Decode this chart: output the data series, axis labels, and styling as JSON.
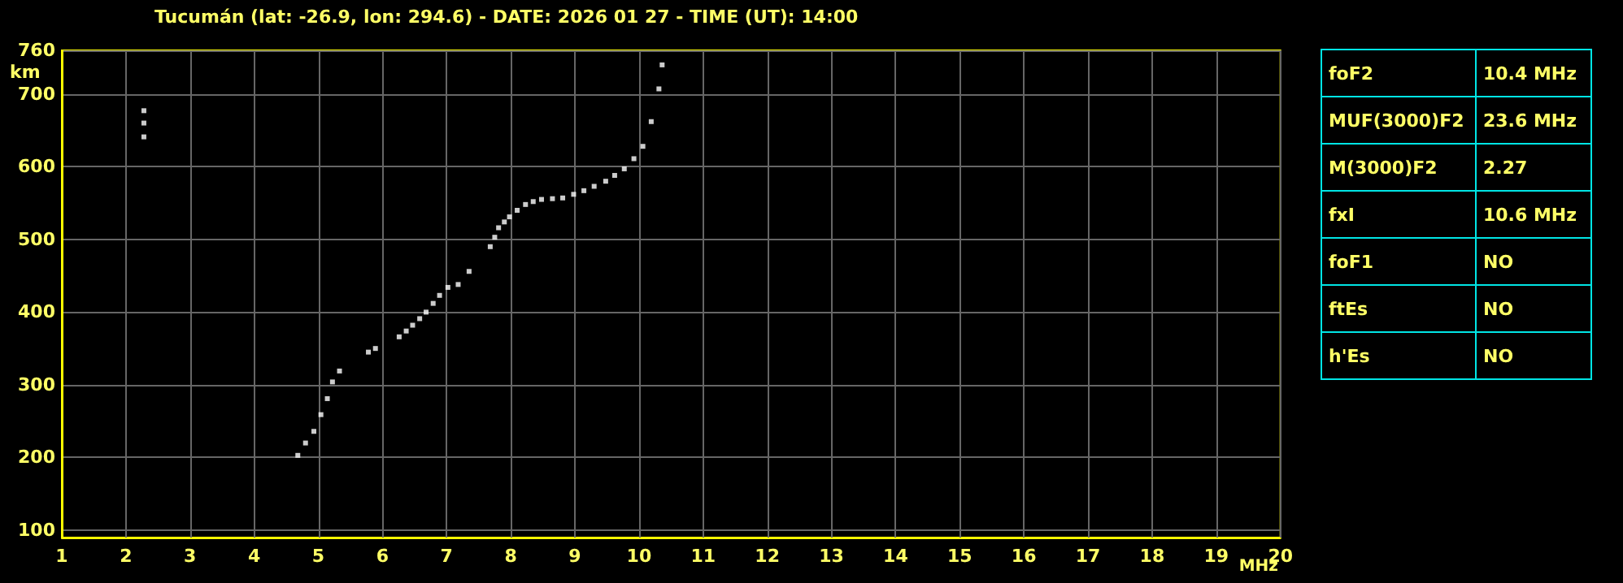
{
  "chart_data": [
    {
      "type": "scatter",
      "title": "Tucumán (lat: -26.9, lon: 294.6) - DATE: 2026 01 27 - TIME (UT): 14:00",
      "xlabel": "MHz",
      "ylabel": "km",
      "color": "#ffffff",
      "marker": "square",
      "grid": true,
      "x": [
        2.28,
        2.28,
        2.28,
        4.68,
        4.8,
        4.93,
        5.04,
        5.14,
        5.22,
        5.33,
        5.78,
        5.89,
        6.26,
        6.37,
        6.47,
        6.58,
        6.68,
        6.79,
        6.89,
        7.02,
        7.18,
        7.35,
        7.68,
        7.75,
        7.81,
        7.9,
        7.98,
        8.1,
        8.23,
        8.35,
        8.48,
        8.65,
        8.81,
        8.98,
        9.14,
        9.3,
        9.48,
        9.62,
        9.77,
        9.92,
        10.06,
        10.19,
        10.31,
        10.36
      ],
      "values": [
        641,
        660,
        677,
        203,
        220,
        236,
        259,
        281,
        304,
        319,
        345,
        350,
        366,
        374,
        382,
        391,
        400,
        412,
        423,
        434,
        438,
        456,
        490,
        503,
        516,
        524,
        531,
        540,
        548,
        552,
        555,
        556,
        557,
        562,
        567,
        573,
        580,
        588,
        597,
        611,
        628,
        662,
        707,
        740
      ],
      "xlim": [
        1,
        20
      ],
      "xticks": [
        1,
        2,
        3,
        4,
        5,
        6,
        7,
        8,
        9,
        10,
        11,
        12,
        13,
        14,
        15,
        16,
        17,
        18,
        19,
        20
      ],
      "ylim": [
        90,
        760
      ],
      "yticks": [
        100,
        200,
        300,
        400,
        500,
        600,
        700,
        760
      ]
    },
    {
      "type": "other",
      "annotations": [
        "foF2",
        "10.4 MHz",
        "MUF(3000)F2",
        "23.6 MHz",
        "M(3000)F2",
        "2.27",
        "fxI",
        "10.6 MHz",
        "foF1",
        "NO",
        "ftEs",
        "NO",
        "h'Es",
        "NO"
      ]
    }
  ]
}
